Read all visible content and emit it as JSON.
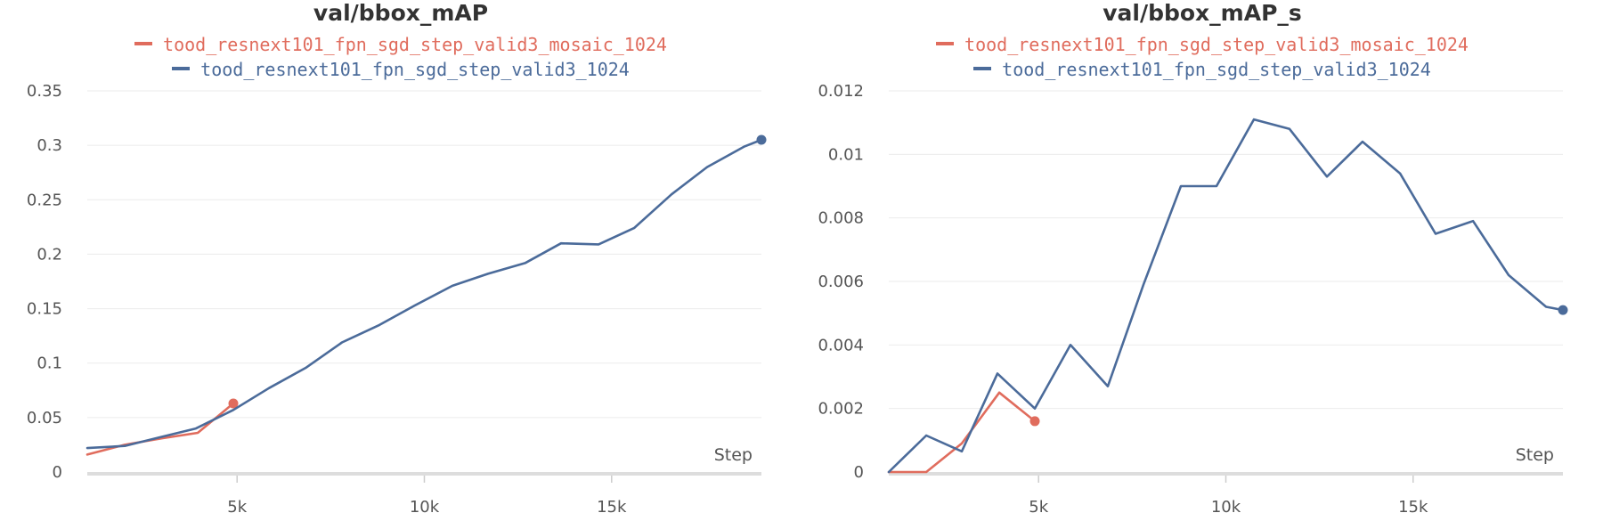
{
  "chart_data": [
    {
      "type": "line",
      "title": "val/bbox_mAP",
      "xlabel": "Step",
      "ylabel": "",
      "xlim": [
        1000,
        19000
      ],
      "ylim": [
        0,
        0.35
      ],
      "x_ticks": [
        5000,
        10000,
        15000
      ],
      "x_tick_labels": [
        "5k",
        "10k",
        "15k"
      ],
      "y_ticks": [
        0,
        0.05,
        0.1,
        0.15,
        0.2,
        0.25,
        0.3,
        0.35
      ],
      "y_tick_labels": [
        "0",
        "0.05",
        "0.1",
        "0.15",
        "0.2",
        "0.25",
        "0.3",
        "0.35"
      ],
      "grid": true,
      "legend": "top-center",
      "series": [
        {
          "name": "tood_resnext101_fpn_sgd_step_valid3_mosaic_1024",
          "color": "#e06c5d",
          "x": [
            1000,
            2000,
            3000,
            3950,
            4900
          ],
          "y": [
            0.016,
            0.025,
            0.031,
            0.036,
            0.063
          ]
        },
        {
          "name": "tood_resnext101_fpn_sgd_step_valid3_1024",
          "color": "#4b6b9a",
          "x": [
            1000,
            2000,
            2950,
            3900,
            4900,
            5850,
            6850,
            7800,
            8800,
            9750,
            10750,
            11700,
            12700,
            13650,
            14650,
            15600,
            16600,
            17550,
            18550,
            19000
          ],
          "y": [
            0.022,
            0.024,
            0.032,
            0.04,
            0.057,
            0.077,
            0.096,
            0.119,
            0.135,
            0.153,
            0.171,
            0.182,
            0.192,
            0.21,
            0.209,
            0.224,
            0.255,
            0.28,
            0.299,
            0.305
          ]
        }
      ]
    },
    {
      "type": "line",
      "title": "val/bbox_mAP_s",
      "xlabel": "Step",
      "ylabel": "",
      "xlim": [
        1000,
        19000
      ],
      "ylim": [
        0,
        0.012
      ],
      "x_ticks": [
        5000,
        10000,
        15000
      ],
      "x_tick_labels": [
        "5k",
        "10k",
        "15k"
      ],
      "y_ticks": [
        0,
        0.002,
        0.004,
        0.006,
        0.008,
        0.01,
        0.012
      ],
      "y_tick_labels": [
        "0",
        "0.002",
        "0.004",
        "0.006",
        "0.008",
        "0.01",
        "0.012"
      ],
      "grid": true,
      "legend": "top-center",
      "series": [
        {
          "name": "tood_resnext101_fpn_sgd_step_valid3_mosaic_1024",
          "color": "#e06c5d",
          "x": [
            1000,
            2000,
            2950,
            3950,
            4900
          ],
          "y": [
            0.0,
            0.0,
            0.0009,
            0.0025,
            0.0016
          ]
        },
        {
          "name": "tood_resnext101_fpn_sgd_step_valid3_1024",
          "color": "#4b6b9a",
          "x": [
            1000,
            2000,
            2950,
            3900,
            4900,
            5850,
            6850,
            7800,
            8800,
            9750,
            10750,
            11700,
            12700,
            13650,
            14650,
            15600,
            16600,
            17550,
            18550,
            19000
          ],
          "y": [
            0.0,
            0.00115,
            0.00065,
            0.0031,
            0.002,
            0.004,
            0.0027,
            0.0059,
            0.009,
            0.009,
            0.0111,
            0.0108,
            0.0093,
            0.0104,
            0.0094,
            0.0075,
            0.0079,
            0.0062,
            0.0052,
            0.0051
          ]
        }
      ]
    }
  ]
}
